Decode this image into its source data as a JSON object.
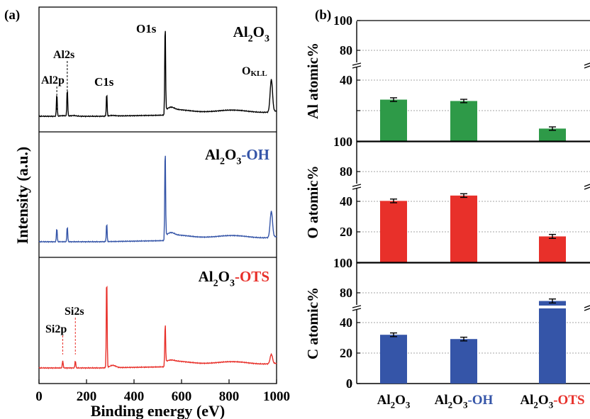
{
  "panel_labels": {
    "a": "(a)",
    "b": "(b)"
  },
  "colors": {
    "black": "#000000",
    "blue": "#3555a8",
    "red": "#e8302a",
    "green": "#2e9a48",
    "grid": "#888888"
  },
  "chart_data": [
    {
      "type": "line",
      "panel": "(a)",
      "xlabel": "Binding energy (eV)",
      "ylabel": "Intensity (a.u.)",
      "xlim": [
        0,
        1000
      ],
      "xticks": [
        "0",
        "200",
        "400",
        "600",
        "800",
        "1000"
      ],
      "series": [
        {
          "name": "Al2O3",
          "label_parts": {
            "base": "Al",
            "sub1": "2",
            "mid": "O",
            "sub2": "3",
            "suffix": ""
          },
          "color": "#000000",
          "peaks": [
            {
              "label": "Al2p",
              "x": 75,
              "height": 0.25
            },
            {
              "label": "Al2s",
              "x": 119,
              "height": 0.3
            },
            {
              "label": "C1s",
              "x": 285,
              "height": 0.25
            },
            {
              "label": "O1s",
              "x": 531,
              "height": 1.0
            },
            {
              "label": "OKLL",
              "x": 978,
              "height": 0.35
            }
          ]
        },
        {
          "name": "Al2O3-OH",
          "label_parts": {
            "base": "Al",
            "sub1": "2",
            "mid": "O",
            "sub2": "3",
            "suffix": "-OH"
          },
          "color": "#3555a8",
          "peaks": [
            {
              "x": 75,
              "height": 0.15
            },
            {
              "x": 119,
              "height": 0.17
            },
            {
              "x": 285,
              "height": 0.2
            },
            {
              "x": 531,
              "height": 1.0
            },
            {
              "x": 978,
              "height": 0.28
            }
          ]
        },
        {
          "name": "Al2O3-OTS",
          "label_parts": {
            "base": "Al",
            "sub1": "2",
            "mid": "O",
            "sub2": "3",
            "suffix": "-OTS"
          },
          "color": "#e8302a",
          "peaks": [
            {
              "label": "Si2p",
              "x": 100,
              "height": 0.08
            },
            {
              "label": "Si2s",
              "x": 153,
              "height": 0.08
            },
            {
              "x": 285,
              "height": 1.0
            },
            {
              "x": 531,
              "height": 0.45
            },
            {
              "x": 978,
              "height": 0.1
            }
          ]
        }
      ],
      "annotations": {
        "Al2p": "Al2p",
        "Al2s": "Al2s",
        "C1s": "C1s",
        "O1s": "O1s",
        "O_main": "O",
        "O_sub": "KLL",
        "Si2p": "Si2p",
        "Si2s": "Si2s"
      }
    },
    {
      "type": "bar",
      "panel": "(b)",
      "categories": [
        "Al2O3",
        "Al2O3-OH",
        "Al2O3-OTS"
      ],
      "category_parts": [
        {
          "base": "Al",
          "sub1": "2",
          "mid": "O",
          "sub2": "3",
          "suffix": ""
        },
        {
          "base": "Al",
          "sub1": "2",
          "mid": "O",
          "sub2": "3",
          "suffix": "-OH"
        },
        {
          "base": "Al",
          "sub1": "2",
          "mid": "O",
          "sub2": "3",
          "suffix": "-OTS"
        }
      ],
      "axis_break": [
        50,
        70
      ],
      "yticks": [
        "0",
        "20",
        "40",
        "80",
        "100"
      ],
      "subplots": [
        {
          "ylabel": "Al atomic%",
          "color": "#2e9a48",
          "values": [
            27.2,
            26.3,
            8.2
          ],
          "errors": [
            0.5,
            0.4,
            0.4
          ]
        },
        {
          "ylabel": "O atomic%",
          "color": "#e8302a",
          "values": [
            40.3,
            43.8,
            17.0
          ],
          "errors": [
            0.5,
            0.5,
            0.6
          ]
        },
        {
          "ylabel": "C atomic%",
          "color": "#3555a8",
          "values": [
            32.0,
            29.2,
            74.5
          ],
          "errors": [
            0.5,
            0.5,
            0.6
          ]
        }
      ]
    }
  ]
}
